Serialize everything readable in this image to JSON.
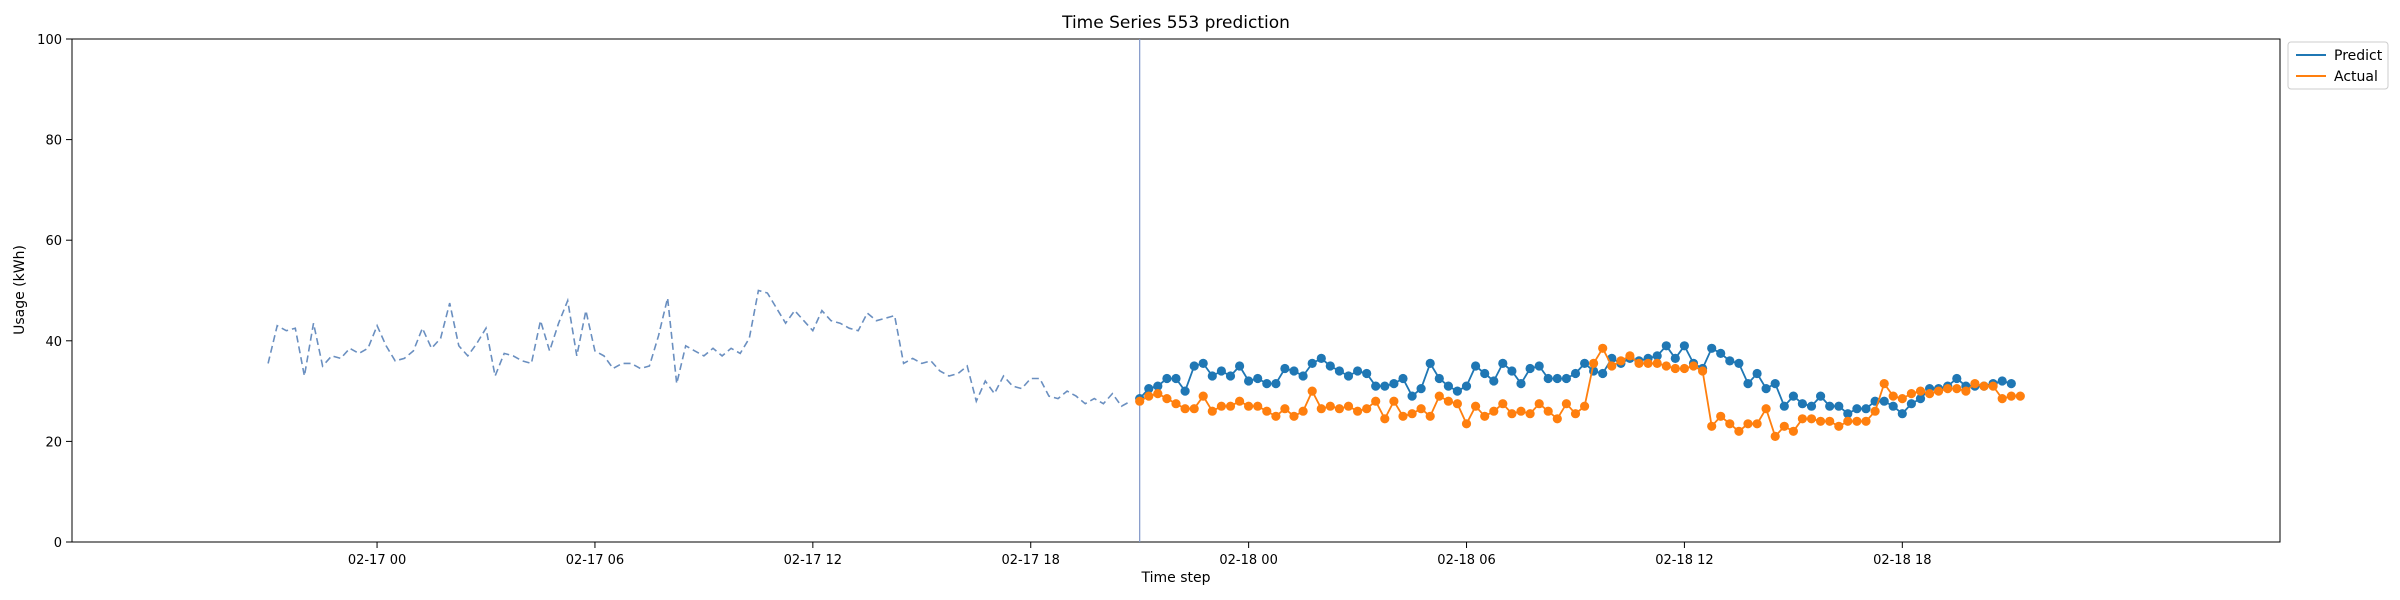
{
  "chart_data": {
    "type": "line",
    "title": "Time Series 553 prediction",
    "xlabel": "Time step",
    "ylabel": "Usage (kWh)",
    "ylim": [
      0,
      100
    ],
    "xlim": [
      "2026-02-16 15:36",
      "2026-02-19 04:24"
    ],
    "yticks": [
      0,
      20,
      40,
      60,
      80,
      100
    ],
    "xticks": [
      {
        "t": "2026-02-17 00:00",
        "label": "02-17 00"
      },
      {
        "t": "2026-02-17 06:00",
        "label": "02-17 06"
      },
      {
        "t": "2026-02-17 12:00",
        "label": "02-17 12"
      },
      {
        "t": "2026-02-17 18:00",
        "label": "02-17 18"
      },
      {
        "t": "2026-02-18 00:00",
        "label": "02-18 00"
      },
      {
        "t": "2026-02-18 06:00",
        "label": "02-18 06"
      },
      {
        "t": "2026-02-18 12:00",
        "label": "02-18 12"
      },
      {
        "t": "2026-02-18 18:00",
        "label": "02-18 18"
      }
    ],
    "grid": false,
    "legend_position": "outside-top-right",
    "prediction_start": "2026-02-17 21:00",
    "colors": {
      "predict": "#1f77b4",
      "actual": "#ff7f0e",
      "history": "#6a8fc0",
      "divider": "#7f96c8"
    },
    "series": [
      {
        "name": "",
        "style": "dashed",
        "start": "2026-02-16 21:00",
        "interval_minutes": 15,
        "values": [
          35.5,
          43.0,
          42.0,
          42.5,
          33.0,
          43.5,
          35.0,
          37.0,
          36.5,
          38.5,
          37.5,
          38.5,
          43.0,
          39.0,
          36.0,
          36.5,
          38.0,
          42.5,
          38.5,
          40.5,
          47.5,
          39.0,
          37.0,
          39.5,
          42.5,
          33.0,
          37.5,
          37.0,
          36.0,
          35.5,
          44.0,
          38.0,
          43.5,
          48.0,
          37.0,
          46.0,
          38.0,
          37.0,
          34.5,
          35.5,
          35.5,
          34.5,
          35.0,
          41.0,
          48.5,
          31.5,
          39.0,
          38.0,
          37.0,
          38.5,
          37.0,
          38.5,
          37.5,
          40.5,
          50.0,
          49.5,
          46.5,
          43.5,
          46.0,
          44.0,
          42.0,
          46.0,
          44.0,
          43.5,
          42.5,
          42.0,
          45.5,
          44.0,
          44.5,
          45.0,
          35.5,
          36.5,
          35.5,
          36.0,
          34.0,
          33.0,
          33.5,
          35.0,
          28.0,
          32.0,
          29.5,
          33.0,
          31.0,
          30.5,
          32.5,
          32.5,
          29.0,
          28.5,
          30.0,
          29.0,
          27.5,
          28.5,
          27.5,
          29.5,
          27.0,
          28.0
        ]
      },
      {
        "name": "Predict",
        "style": "solid-marker",
        "start": "2026-02-17 21:00",
        "interval_minutes": 15,
        "values": [
          28.5,
          30.5,
          31.0,
          32.5,
          32.5,
          30.0,
          35.0,
          35.5,
          33.0,
          34.0,
          33.0,
          35.0,
          32.0,
          32.5,
          31.5,
          31.5,
          34.5,
          34.0,
          33.0,
          35.5,
          36.5,
          35.0,
          34.0,
          33.0,
          34.0,
          33.5,
          31.0,
          31.0,
          31.5,
          32.5,
          29.0,
          30.5,
          35.5,
          32.5,
          31.0,
          30.0,
          31.0,
          35.0,
          33.5,
          32.0,
          35.5,
          34.0,
          31.5,
          34.5,
          35.0,
          32.5,
          32.5,
          32.5,
          33.5,
          35.5,
          34.0,
          33.5,
          36.5,
          35.5,
          36.5,
          36.0,
          36.5,
          37.0,
          39.0,
          36.5,
          39.0,
          35.5,
          34.5,
          38.5,
          37.5,
          36.0,
          35.5,
          31.5,
          33.5,
          30.5,
          31.5,
          27.0,
          29.0,
          27.5,
          27.0,
          29.0,
          27.0,
          27.0,
          25.5,
          26.5,
          26.5,
          28.0,
          28.0,
          27.0,
          25.5,
          27.5,
          28.5,
          30.5,
          30.5,
          31.0,
          32.5,
          31.0,
          31.0,
          31.0,
          31.5,
          32.0,
          31.5
        ]
      },
      {
        "name": "Actual",
        "style": "solid-marker",
        "start": "2026-02-17 21:00",
        "interval_minutes": 15,
        "values": [
          28.0,
          29.0,
          29.5,
          28.5,
          27.5,
          26.5,
          26.5,
          29.0,
          26.0,
          27.0,
          27.0,
          28.0,
          27.0,
          27.0,
          26.0,
          25.0,
          26.5,
          25.0,
          26.0,
          30.0,
          26.5,
          27.0,
          26.5,
          27.0,
          26.0,
          26.5,
          28.0,
          24.5,
          28.0,
          25.0,
          25.5,
          26.5,
          25.0,
          29.0,
          28.0,
          27.5,
          23.5,
          27.0,
          25.0,
          26.0,
          27.5,
          25.5,
          26.0,
          25.5,
          27.5,
          26.0,
          24.5,
          27.5,
          25.5,
          27.0,
          35.5,
          38.5,
          35.0,
          36.0,
          37.0,
          35.5,
          35.5,
          35.5,
          35.0,
          34.5,
          34.5,
          35.0,
          34.0,
          23.0,
          25.0,
          23.5,
          22.0,
          23.5,
          23.5,
          26.5,
          21.0,
          23.0,
          22.0,
          24.5,
          24.5,
          24.0,
          24.0,
          23.0,
          24.0,
          24.0,
          24.0,
          26.0,
          31.5,
          29.0,
          28.5,
          29.5,
          30.0,
          29.5,
          30.0,
          30.5,
          30.5,
          30.0,
          31.5,
          31.0,
          31.0,
          28.5,
          29.0,
          29.0
        ]
      }
    ]
  }
}
